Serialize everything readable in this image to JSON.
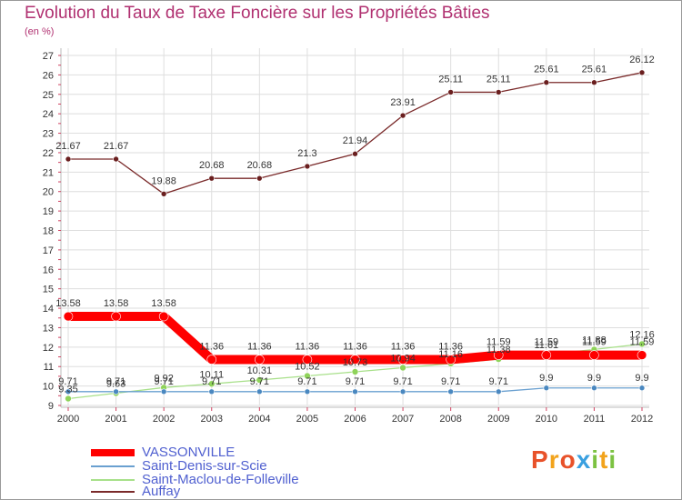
{
  "title": "Evolution du Taux de Taxe Foncière sur les Propriétés Bâties",
  "unit_label": "(en %)",
  "brand": "Proxiti",
  "brand_colors": [
    "#e8522a",
    "#f2a31c",
    "#3aa0e0",
    "#7cc242"
  ],
  "chart_data": {
    "type": "line",
    "x": [
      "2000",
      "2001",
      "2002",
      "2003",
      "2004",
      "2005",
      "2006",
      "2007",
      "2008",
      "2009",
      "2010",
      "2011",
      "2012"
    ],
    "ylim": [
      9,
      27
    ],
    "yticks": [
      9,
      10,
      11,
      12,
      13,
      14,
      15,
      16,
      17,
      18,
      19,
      20,
      21,
      22,
      23,
      24,
      25,
      26,
      27
    ],
    "series": [
      {
        "name": "Auffay",
        "color": "#7a2a2a",
        "values": [
          21.67,
          21.67,
          19.88,
          20.68,
          20.68,
          21.3,
          21.94,
          23.91,
          25.11,
          25.11,
          25.61,
          25.61,
          26.12
        ],
        "labels": [
          "21.67",
          "21.67",
          "19.88",
          "20.68",
          "20.68",
          "21.3",
          "21.94",
          "23.91",
          "25.11",
          "25.11",
          "25.61",
          "25.61",
          "26.12"
        ]
      },
      {
        "name": "Saint-Maclou-de-Folleville",
        "color": "#a8e08a",
        "values": [
          9.35,
          9.63,
          9.92,
          10.11,
          10.31,
          10.52,
          10.73,
          10.94,
          11.16,
          11.38,
          11.61,
          11.88,
          12.16
        ],
        "labels": [
          "9.35",
          "9.63",
          "9.92",
          "10.11",
          "10.31",
          "10.52",
          "10.73",
          "10.94",
          "11.16",
          "11.38",
          "11.61",
          "11.88",
          "12.16"
        ]
      },
      {
        "name": "Saint-Denis-sur-Scie",
        "color": "#6aa0d0",
        "values": [
          9.71,
          9.71,
          9.71,
          9.71,
          9.71,
          9.71,
          9.71,
          9.71,
          9.71,
          9.71,
          9.9,
          9.9,
          9.9
        ],
        "labels": [
          "9.71",
          "9.71",
          "9.71",
          "9.71",
          "9.71",
          "9.71",
          "9.71",
          "9.71",
          "9.71",
          "9.71",
          "9.9",
          "9.9",
          "9.9"
        ]
      },
      {
        "name": "VASSONVILLE",
        "color": "#ff0000",
        "values": [
          13.58,
          13.58,
          13.58,
          11.36,
          11.36,
          11.36,
          11.36,
          11.36,
          11.36,
          11.59,
          11.59,
          11.59,
          11.59
        ],
        "labels": [
          "13.58",
          "13.58",
          "13.58",
          "11.36",
          "11.36",
          "11.36",
          "11.36",
          "11.36",
          "11.36",
          "11.59",
          "11.59",
          "11.59",
          "11.59"
        ]
      }
    ]
  },
  "legend": [
    {
      "label": "VASSONVILLE",
      "color": "#ff0000"
    },
    {
      "label": "Saint-Denis-sur-Scie",
      "color": "#6aa0d0"
    },
    {
      "label": "Saint-Maclou-de-Folleville",
      "color": "#a8e08a"
    },
    {
      "label": "Auffay",
      "color": "#7a2a2a"
    }
  ]
}
